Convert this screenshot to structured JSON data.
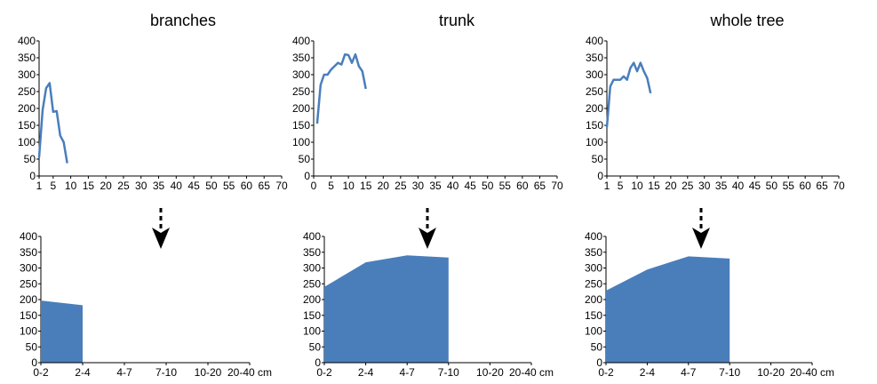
{
  "chart_data": [
    {
      "type": "line",
      "title": "branches",
      "x": [
        1,
        2,
        3,
        4,
        5,
        6,
        7,
        8,
        9,
        10
      ],
      "series": [
        {
          "values": [
            55,
            195,
            260,
            275,
            190,
            192,
            120,
            100,
            38,
            null
          ]
        }
      ],
      "ylim": [
        0,
        400
      ],
      "yticks": [
        0,
        50,
        100,
        150,
        200,
        250,
        300,
        350,
        400
      ],
      "xlim": [
        1,
        70
      ],
      "xticks": [
        1,
        5,
        10,
        15,
        20,
        25,
        30,
        35,
        40,
        45,
        50,
        55,
        60,
        65,
        70
      ],
      "color": "#4a7ebb",
      "annotation": "down arrow"
    },
    {
      "type": "line",
      "title": "trunk",
      "x": [
        1,
        2,
        3,
        4,
        5,
        6,
        7,
        8,
        9,
        10,
        11,
        12,
        13,
        14,
        15,
        16
      ],
      "series": [
        {
          "values": [
            155,
            270,
            300,
            300,
            315,
            325,
            335,
            330,
            360,
            358,
            335,
            360,
            325,
            310,
            258,
            null
          ]
        }
      ],
      "ylim": [
        0,
        400
      ],
      "yticks": [
        0,
        50,
        100,
        150,
        200,
        250,
        300,
        350,
        400
      ],
      "xlim": [
        0,
        70
      ],
      "xticks": [
        0,
        5,
        10,
        15,
        20,
        25,
        30,
        35,
        40,
        45,
        50,
        55,
        60,
        65,
        70
      ],
      "color": "#4a7ebb",
      "annotation": "down arrow"
    },
    {
      "type": "line",
      "title": "whole tree",
      "x": [
        1,
        2,
        3,
        4,
        5,
        6,
        7,
        8,
        9,
        10,
        11,
        12,
        13,
        14,
        15,
        16
      ],
      "series": [
        {
          "values": [
            145,
            265,
            285,
            285,
            285,
            295,
            285,
            320,
            335,
            310,
            335,
            310,
            290,
            245,
            null,
            null
          ]
        }
      ],
      "ylim": [
        0,
        400
      ],
      "yticks": [
        0,
        50,
        100,
        150,
        200,
        250,
        300,
        350,
        400
      ],
      "xlim": [
        1,
        70
      ],
      "xticks": [
        1,
        5,
        10,
        15,
        20,
        25,
        30,
        35,
        40,
        45,
        50,
        55,
        60,
        65,
        70
      ],
      "color": "#4a7ebb",
      "annotation": "down arrow"
    },
    {
      "type": "area",
      "categories": [
        "0-2",
        "2-4",
        "4-7",
        "7-10",
        "10-20",
        "20-40 cm"
      ],
      "series": [
        {
          "values": [
            197,
            182,
            null,
            null,
            null,
            null
          ]
        }
      ],
      "ylim": [
        0,
        400
      ],
      "yticks": [
        0,
        50,
        100,
        150,
        200,
        250,
        300,
        350,
        400
      ],
      "color": "#4a7ebb"
    },
    {
      "type": "area",
      "categories": [
        "0-2",
        "2-4",
        "4-7",
        "7-10",
        "10-20",
        "20-40 cm"
      ],
      "series": [
        {
          "values": [
            240,
            318,
            340,
            333,
            null,
            null
          ]
        }
      ],
      "ylim": [
        0,
        400
      ],
      "yticks": [
        0,
        50,
        100,
        150,
        200,
        250,
        300,
        350,
        400
      ],
      "color": "#4a7ebb"
    },
    {
      "type": "area",
      "categories": [
        "0-2",
        "2-4",
        "4-7",
        "7-10",
        "10-20",
        "20-40 cm"
      ],
      "series": [
        {
          "values": [
            228,
            295,
            337,
            330,
            null,
            null
          ]
        }
      ],
      "ylim": [
        0,
        400
      ],
      "yticks": [
        0,
        50,
        100,
        150,
        200,
        250,
        300,
        350,
        400
      ],
      "color": "#4a7ebb"
    }
  ]
}
